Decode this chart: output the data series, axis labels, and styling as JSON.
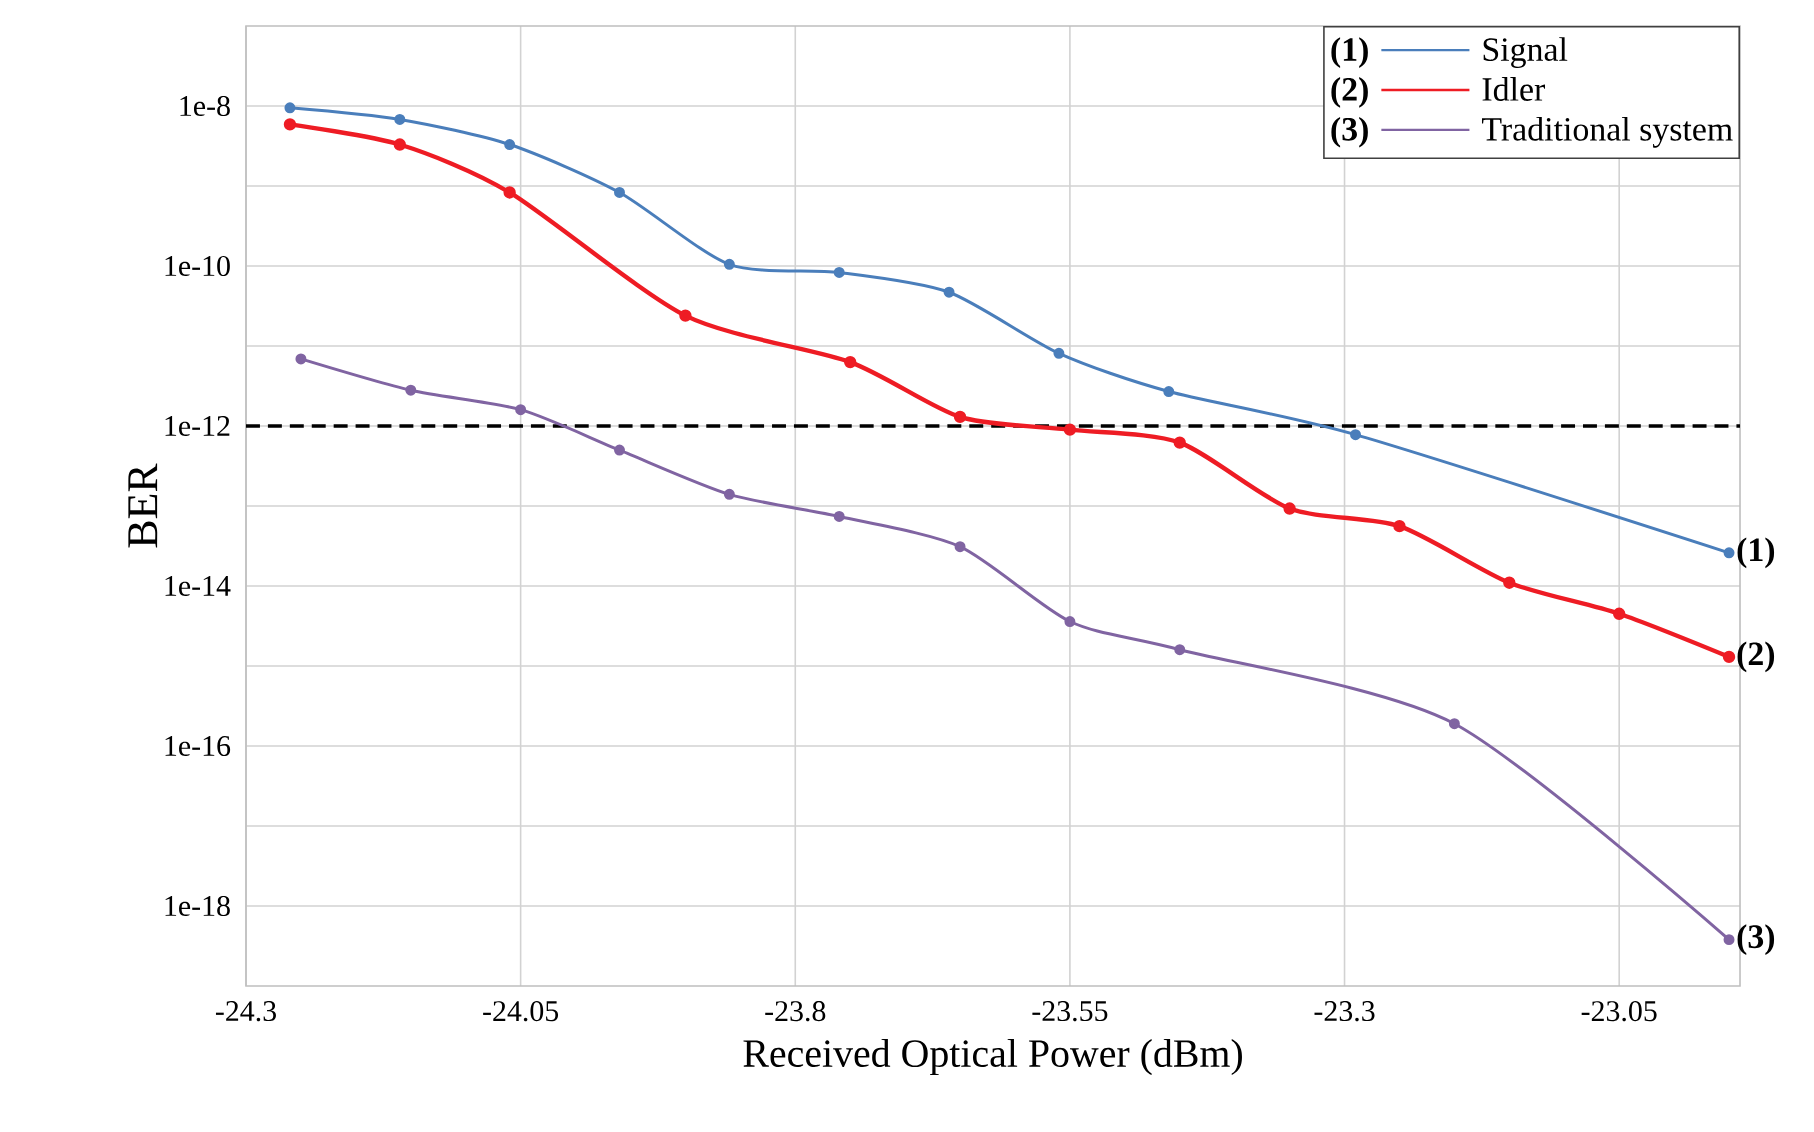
{
  "chart_data": {
    "type": "line",
    "xlabel": "Received Optical Power  (dBm)",
    "ylabel": "BER",
    "xlim": [
      -24.3,
      -22.94
    ],
    "xticks": [
      -24.3,
      -24.05,
      -23.8,
      -23.55,
      -23.3,
      -23.05
    ],
    "ylim": [
      1e-19,
      1e-07
    ],
    "yticks": [
      {
        "value": 1e-18,
        "label": "1e-18"
      },
      {
        "value": 1e-17,
        "label": null
      },
      {
        "value": 1e-16,
        "label": "1e-16"
      },
      {
        "value": 1e-15,
        "label": null
      },
      {
        "value": 1e-14,
        "label": "1e-14"
      },
      {
        "value": 1e-13,
        "label": null
      },
      {
        "value": 1e-12,
        "label": "1e-12"
      },
      {
        "value": 1e-11,
        "label": null
      },
      {
        "value": 1e-10,
        "label": "1e-10"
      },
      {
        "value": 1e-09,
        "label": null
      },
      {
        "value": 1e-08,
        "label": "1e-8"
      }
    ],
    "log": "y",
    "grid": true,
    "legend": "top right",
    "marker": "circle",
    "line_style": "solid",
    "series": [
      {
        "name": "Signal",
        "color": "#4a7ebb",
        "x": [
          -24.26,
          -24.16,
          -24.06,
          -23.96,
          -23.86,
          -23.76,
          -23.66,
          -23.56,
          -23.46,
          -23.29,
          -22.95
        ],
        "values": [
          9.5e-09,
          6.8e-09,
          3.3e-09,
          8.3e-10,
          1.05e-10,
          8.3e-11,
          4.7e-11,
          8.1e-12,
          2.7e-12,
          7.8e-13,
          2.6e-14
        ]
      },
      {
        "name": "Idler",
        "color": "#ee1c24",
        "x": [
          -24.26,
          -24.16,
          -24.06,
          -23.9,
          -23.75,
          -23.65,
          -23.55,
          -23.45,
          -23.35,
          -23.25,
          -23.15,
          -23.05,
          -22.95
        ],
        "values": [
          5.9e-09,
          3.3e-09,
          8.3e-10,
          2.4e-11,
          6.3e-12,
          1.3e-12,
          9e-13,
          6.2e-13,
          9.3e-14,
          5.6e-14,
          1.1e-14,
          4.5e-15,
          1.3e-15
        ]
      },
      {
        "name": "Traditional system",
        "color": "#8064a2",
        "x": [
          -24.25,
          -24.15,
          -24.05,
          -23.96,
          -23.86,
          -23.76,
          -23.65,
          -23.55,
          -23.45,
          -23.2,
          -22.95
        ],
        "values": [
          6.9e-12,
          2.8e-12,
          1.6e-12,
          5e-13,
          1.4e-13,
          7.4e-14,
          3.1e-14,
          3.6e-15,
          1.6e-15,
          1.9e-16,
          3.8e-19
        ]
      }
    ],
    "ref_lines": [
      {
        "axis": "y",
        "value": 1e-12,
        "color": "#000000",
        "line_style": "dashed"
      }
    ],
    "annotations": [
      "(1)",
      "(2)",
      "(3)"
    ]
  }
}
